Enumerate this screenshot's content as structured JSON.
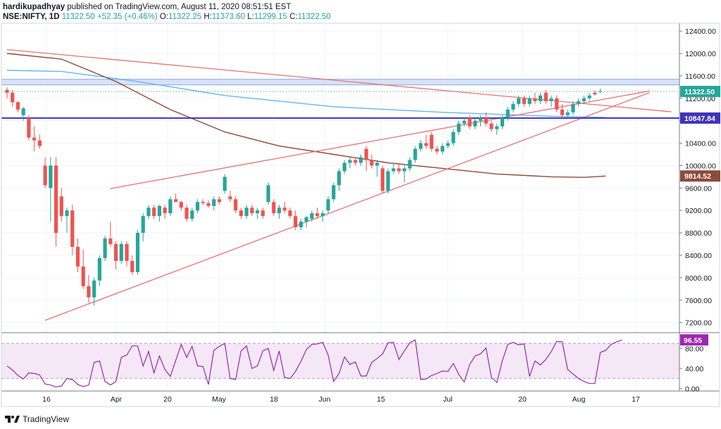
{
  "header": {
    "author": "hardikupadhyay",
    "published_text": "published on TradingView.com, August 11, 2020 08:51:51 EST"
  },
  "ohlc": {
    "symbol": "NSE:NIFTY, 1D",
    "last": "11322.50",
    "change": "+52.35 (+0.46%)",
    "open_label": "O:",
    "open": "11322.25",
    "high_label": "H:",
    "high": "11373.60",
    "low_label": "L:",
    "low": "11299.15",
    "close_label": "C:",
    "close": "11322.50"
  },
  "footer": {
    "brand": "TradingView"
  },
  "colors": {
    "up": "#26a69a",
    "down": "#ef5350",
    "rsi": "#9c27b0",
    "ma_blue": "#64b5f6",
    "ma_brown": "#8d4b3b",
    "trend": "#e57373",
    "support": "#3f33b5",
    "zone": "#c5d5f5",
    "grid": "#f0f3fa"
  },
  "chart_data": [
    {
      "type": "candlestick",
      "title": "NSE:NIFTY, 1D",
      "x_tick_labels": [
        "16",
        "Apr",
        "20",
        "May",
        "18",
        "Jun",
        "15",
        "Jul",
        "20",
        "Aug",
        "17"
      ],
      "y_tick_labels": [
        "7200.00",
        "7600.00",
        "8000.00",
        "8400.00",
        "8800.00",
        "9200.00",
        "9600.00",
        "10000.00",
        "10400.00",
        "10800.00",
        "11200.00",
        "11600.00",
        "12000.00",
        "12400.00"
      ],
      "ylim": [
        7020,
        12540
      ],
      "y_ticks": [
        7200,
        7600,
        8000,
        8400,
        8800,
        9200,
        9600,
        10000,
        10400,
        10800,
        11200,
        11600,
        12000,
        12400
      ],
      "grid": true,
      "price_labels": [
        {
          "text": "11322.50",
          "value": 11322.5,
          "role": "last"
        },
        {
          "text": "10847.84",
          "value": 10847.84,
          "role": "support"
        },
        {
          "text": "9814.52",
          "value": 9814.52,
          "role": "ma"
        }
      ],
      "candles": [
        [
          11350,
          11400,
          11200,
          11300
        ],
        [
          11300,
          11350,
          11050,
          11130
        ],
        [
          11130,
          11150,
          10950,
          11000
        ],
        [
          10900,
          11050,
          10800,
          11020
        ],
        [
          10850,
          10900,
          10450,
          10500
        ],
        [
          10500,
          10700,
          10250,
          10450
        ],
        [
          10450,
          10550,
          10300,
          10350
        ],
        [
          10000,
          10150,
          9600,
          9650
        ],
        [
          9600,
          10150,
          9000,
          10000
        ],
        [
          10000,
          10150,
          8550,
          8800
        ],
        [
          9450,
          9600,
          9000,
          9100
        ],
        [
          9100,
          9250,
          8800,
          9200
        ],
        [
          9200,
          9300,
          8400,
          8550
        ],
        [
          8550,
          8700,
          8100,
          8200
        ],
        [
          8200,
          8500,
          7800,
          7850
        ],
        [
          7850,
          8050,
          7550,
          7650
        ],
        [
          7650,
          8000,
          7500,
          7950
        ],
        [
          7950,
          8400,
          7850,
          8350
        ],
        [
          8350,
          8750,
          8300,
          8700
        ],
        [
          8700,
          9000,
          8550,
          8600
        ],
        [
          8600,
          8650,
          8150,
          8300
        ],
        [
          8300,
          8650,
          8250,
          8600
        ],
        [
          8600,
          8650,
          8200,
          8300
        ],
        [
          8300,
          8400,
          8050,
          8100
        ],
        [
          8100,
          8850,
          8050,
          8800
        ],
        [
          8800,
          9150,
          8650,
          9100
        ],
        [
          9100,
          9300,
          9050,
          9250
        ],
        [
          9250,
          9300,
          9050,
          9100
        ],
        [
          9100,
          9300,
          9000,
          9280
        ],
        [
          9250,
          9300,
          9050,
          9150
        ],
        [
          9150,
          9450,
          9100,
          9400
        ],
        [
          9400,
          9500,
          9350,
          9350
        ],
        [
          9350,
          9380,
          9200,
          9250
        ],
        [
          9250,
          9300,
          9000,
          9050
        ],
        [
          9050,
          9250,
          9000,
          9200
        ],
        [
          9200,
          9400,
          9150,
          9350
        ],
        [
          9350,
          9400,
          9300,
          9330
        ],
        [
          9330,
          9380,
          9250,
          9280
        ],
        [
          9280,
          9450,
          9200,
          9400
        ],
        [
          9400,
          9450,
          9300,
          9350
        ],
        [
          9550,
          9850,
          9500,
          9800
        ],
        [
          9450,
          9550,
          9350,
          9400
        ],
        [
          9400,
          9450,
          9150,
          9200
        ],
        [
          9200,
          9250,
          9050,
          9100
        ],
        [
          9100,
          9300,
          9050,
          9250
        ],
        [
          9250,
          9300,
          9100,
          9150
        ],
        [
          9150,
          9250,
          9050,
          9200
        ],
        [
          9200,
          9250,
          9050,
          9100
        ],
        [
          9350,
          9700,
          9300,
          9650
        ],
        [
          9350,
          9400,
          9100,
          9150
        ],
        [
          9150,
          9300,
          9050,
          9250
        ],
        [
          9250,
          9350,
          9150,
          9200
        ],
        [
          9200,
          9250,
          9050,
          9100
        ],
        [
          9100,
          9200,
          8850,
          8900
        ],
        [
          8900,
          9050,
          8850,
          9000
        ],
        [
          9000,
          9100,
          8900,
          9080
        ],
        [
          9050,
          9200,
          9000,
          9150
        ],
        [
          9150,
          9250,
          9050,
          9100
        ],
        [
          9100,
          9200,
          9000,
          9150
        ],
        [
          9200,
          9450,
          9150,
          9400
        ],
        [
          9400,
          9700,
          9350,
          9650
        ],
        [
          9650,
          9950,
          9550,
          9900
        ],
        [
          9900,
          10100,
          9850,
          10050
        ],
        [
          10050,
          10150,
          9950,
          10100
        ],
        [
          10100,
          10150,
          10000,
          10050
        ],
        [
          10050,
          10200,
          10000,
          10150
        ],
        [
          10300,
          10350,
          9900,
          10100
        ],
        [
          10100,
          10200,
          9950,
          10000
        ],
        [
          10000,
          10100,
          9800,
          10050
        ],
        [
          9950,
          10000,
          9500,
          9550
        ],
        [
          9550,
          9950,
          9500,
          9900
        ],
        [
          9900,
          10050,
          9850,
          9950
        ],
        [
          9950,
          10050,
          9850,
          9900
        ],
        [
          9900,
          10000,
          9700,
          9950
        ],
        [
          9950,
          10150,
          9900,
          10100
        ],
        [
          10100,
          10350,
          10050,
          10300
        ],
        [
          10300,
          10450,
          10250,
          10400
        ],
        [
          10400,
          10550,
          10300,
          10350
        ],
        [
          10550,
          10600,
          10250,
          10300
        ],
        [
          10300,
          10350,
          10200,
          10250
        ],
        [
          10250,
          10400,
          10200,
          10350
        ],
        [
          10350,
          10450,
          10300,
          10400
        ],
        [
          10400,
          10650,
          10350,
          10600
        ],
        [
          10600,
          10800,
          10550,
          10750
        ],
        [
          10750,
          10850,
          10700,
          10800
        ],
        [
          10850,
          10900,
          10650,
          10700
        ],
        [
          10700,
          10850,
          10650,
          10800
        ],
        [
          10800,
          10900,
          10700,
          10850
        ],
        [
          10850,
          10950,
          10700,
          10750
        ],
        [
          10750,
          10800,
          10600,
          10650
        ],
        [
          10650,
          10750,
          10550,
          10700
        ],
        [
          10700,
          10900,
          10650,
          10850
        ],
        [
          10850,
          11050,
          10800,
          11000
        ],
        [
          11000,
          11150,
          10950,
          11100
        ],
        [
          11100,
          11250,
          11050,
          11200
        ],
        [
          11200,
          11250,
          11050,
          11100
        ],
        [
          11100,
          11250,
          11050,
          11200
        ],
        [
          11200,
          11300,
          11100,
          11150
        ],
        [
          11150,
          11300,
          11100,
          11250
        ],
        [
          11300,
          11350,
          11100,
          11150
        ],
        [
          11150,
          11250,
          11050,
          11200
        ],
        [
          11200,
          11250,
          10950,
          11000
        ],
        [
          11000,
          11100,
          10850,
          10900
        ],
        [
          10900,
          11000,
          10850,
          10950
        ],
        [
          10950,
          11150,
          10900,
          11100
        ],
        [
          11100,
          11200,
          11050,
          11150
        ],
        [
          11150,
          11250,
          11100,
          11200
        ],
        [
          11200,
          11300,
          11150,
          11250
        ],
        [
          11300,
          11340,
          11250,
          11270
        ],
        [
          11322,
          11374,
          11299,
          11323
        ]
      ],
      "moving_averages": [
        {
          "color_key": "ma_blue",
          "values": [
            [
              0,
              11700
            ],
            [
              10,
              11680
            ],
            [
              24,
              11500
            ],
            [
              40,
              11250
            ],
            [
              60,
              11050
            ],
            [
              80,
              10950
            ],
            [
              100,
              10880
            ],
            [
              110,
              10860
            ]
          ]
        },
        {
          "color_key": "ma_brown",
          "values": [
            [
              0,
              12000
            ],
            [
              10,
              11900
            ],
            [
              20,
              11500
            ],
            [
              30,
              11000
            ],
            [
              40,
              10600
            ],
            [
              50,
              10350
            ],
            [
              60,
              10200
            ],
            [
              70,
              10050
            ],
            [
              80,
              9950
            ],
            [
              90,
              9850
            ],
            [
              100,
              9800
            ],
            [
              106,
              9790
            ],
            [
              110,
              9814
            ]
          ]
        }
      ],
      "trendlines": [
        {
          "color_key": "trend",
          "from": [
            0,
            12070
          ],
          "to": [
            122,
            10960
          ]
        },
        {
          "color_key": "trend",
          "from": [
            19,
            9590
          ],
          "to": [
            118,
            11330
          ]
        },
        {
          "color_key": "trend",
          "from": [
            7,
            7240
          ],
          "to": [
            118,
            11300
          ]
        }
      ],
      "horizontal_levels": [
        {
          "color_key": "support",
          "value": 10847.84
        }
      ],
      "zones": [
        {
          "color_key": "zone",
          "from": 11440,
          "to": 11540
        }
      ]
    },
    {
      "type": "line",
      "title": "RSI",
      "ylim": [
        -5,
        110
      ],
      "y_tick_labels": [
        "0.00",
        "40.00",
        "80.00"
      ],
      "y_ticks": [
        0,
        40,
        80
      ],
      "bands": [
        20,
        90
      ],
      "last_label": "96.55",
      "values": [
        45,
        37,
        26,
        19,
        31,
        30,
        27,
        9,
        7,
        3,
        5,
        20,
        18,
        8,
        4,
        7,
        52,
        55,
        14,
        7,
        14,
        62,
        67,
        85,
        85,
        45,
        74,
        31,
        65,
        38,
        24,
        56,
        88,
        62,
        84,
        45,
        44,
        8,
        76,
        84,
        90,
        20,
        18,
        75,
        85,
        40,
        45,
        75,
        80,
        36,
        75,
        22,
        20,
        34,
        54,
        78,
        88,
        89,
        92,
        67,
        14,
        30,
        63,
        48,
        53,
        25,
        25,
        52,
        60,
        69,
        91,
        92,
        58,
        75,
        91,
        97,
        18,
        19,
        26,
        30,
        35,
        34,
        50,
        28,
        13,
        48,
        65,
        69,
        81,
        22,
        12,
        55,
        88,
        92,
        87,
        89,
        24,
        55,
        47,
        58,
        74,
        94,
        93,
        38,
        29,
        20,
        14,
        10,
        10,
        72,
        76,
        88,
        93,
        97
      ]
    }
  ]
}
